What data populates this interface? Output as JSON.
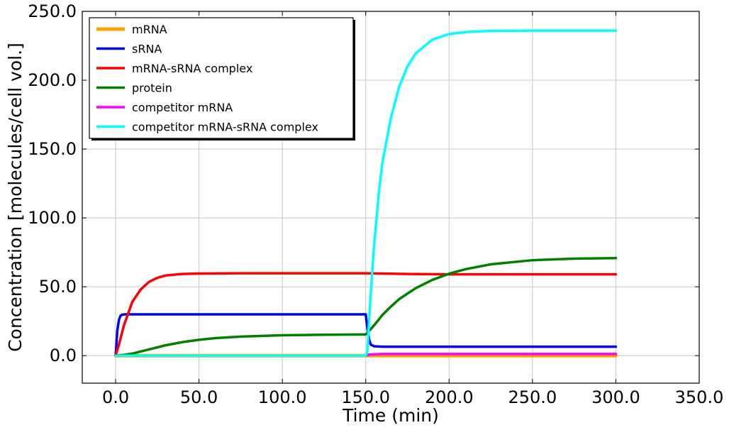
{
  "chart_data": {
    "type": "line",
    "title": "",
    "xlabel": "Time (min)",
    "ylabel": "Concentration [molecules/cell vol.]",
    "xlim": [
      -20,
      350
    ],
    "ylim": [
      -20,
      250
    ],
    "x_ticks": [
      "0.0",
      "50.0",
      "100.0",
      "150.0",
      "200.0",
      "250.0",
      "300.0",
      "350.0"
    ],
    "y_ticks": [
      "0.0",
      "50.0",
      "100.0",
      "150.0",
      "200.0",
      "250.0"
    ],
    "grid": true,
    "legend_position": "top-left",
    "series": [
      {
        "name": "mRNA",
        "color": "#FFA500",
        "width": 5,
        "x": [
          0,
          150,
          151,
          300
        ],
        "y": [
          0,
          0,
          0,
          0
        ]
      },
      {
        "name": "sRNA",
        "color": "#0000FF",
        "width": 3.5,
        "x": [
          0,
          1,
          2,
          3,
          4,
          6,
          10,
          50,
          100,
          149,
          150,
          151,
          152,
          153,
          155,
          160,
          200,
          250,
          300
        ],
        "y": [
          0,
          18,
          26,
          29,
          29.8,
          30,
          30,
          30,
          30,
          30,
          30,
          20,
          12,
          8,
          6.8,
          6.5,
          6.5,
          6.5,
          6.5
        ]
      },
      {
        "name": "mRNA-sRNA complex",
        "color": "#FF0000",
        "width": 3.5,
        "x": [
          0,
          2,
          5,
          10,
          15,
          20,
          25,
          30,
          40,
          50,
          75,
          100,
          150,
          175,
          200,
          250,
          300
        ],
        "y": [
          0,
          8,
          22,
          39,
          48,
          53.5,
          56.5,
          58.2,
          59.3,
          59.6,
          59.8,
          59.8,
          59.8,
          59.3,
          59,
          59,
          59
        ]
      },
      {
        "name": "protein",
        "color": "#008000",
        "width": 3.5,
        "x": [
          0,
          5,
          10,
          20,
          30,
          40,
          50,
          60,
          75,
          100,
          125,
          150,
          151,
          155,
          160,
          165,
          170,
          180,
          190,
          200,
          210,
          225,
          250,
          275,
          300
        ],
        "y": [
          0,
          0.5,
          1.5,
          4.5,
          7.5,
          9.8,
          11.5,
          12.7,
          13.8,
          14.8,
          15.2,
          15.4,
          16.5,
          22,
          29.5,
          35.5,
          41,
          49,
          55,
          59.5,
          62.8,
          66.3,
          69.3,
          70.4,
          70.8
        ]
      },
      {
        "name": "competitor mRNA",
        "color": "#FF00FF",
        "width": 3.5,
        "x": [
          0,
          150,
          152,
          160,
          300
        ],
        "y": [
          0,
          0,
          0.8,
          1.2,
          1.2
        ]
      },
      {
        "name": "competitor mRNA-sRNA complex",
        "color": "#00FFFF",
        "width": 3.5,
        "x": [
          0,
          150,
          151,
          152,
          153,
          155,
          158,
          160,
          165,
          170,
          175,
          180,
          190,
          200,
          210,
          225,
          250,
          275,
          300
        ],
        "y": [
          0,
          0,
          3,
          25,
          45,
          80,
          120,
          140,
          172,
          195,
          210,
          219.5,
          229.5,
          233.5,
          235,
          235.8,
          236,
          236,
          236
        ]
      }
    ]
  }
}
